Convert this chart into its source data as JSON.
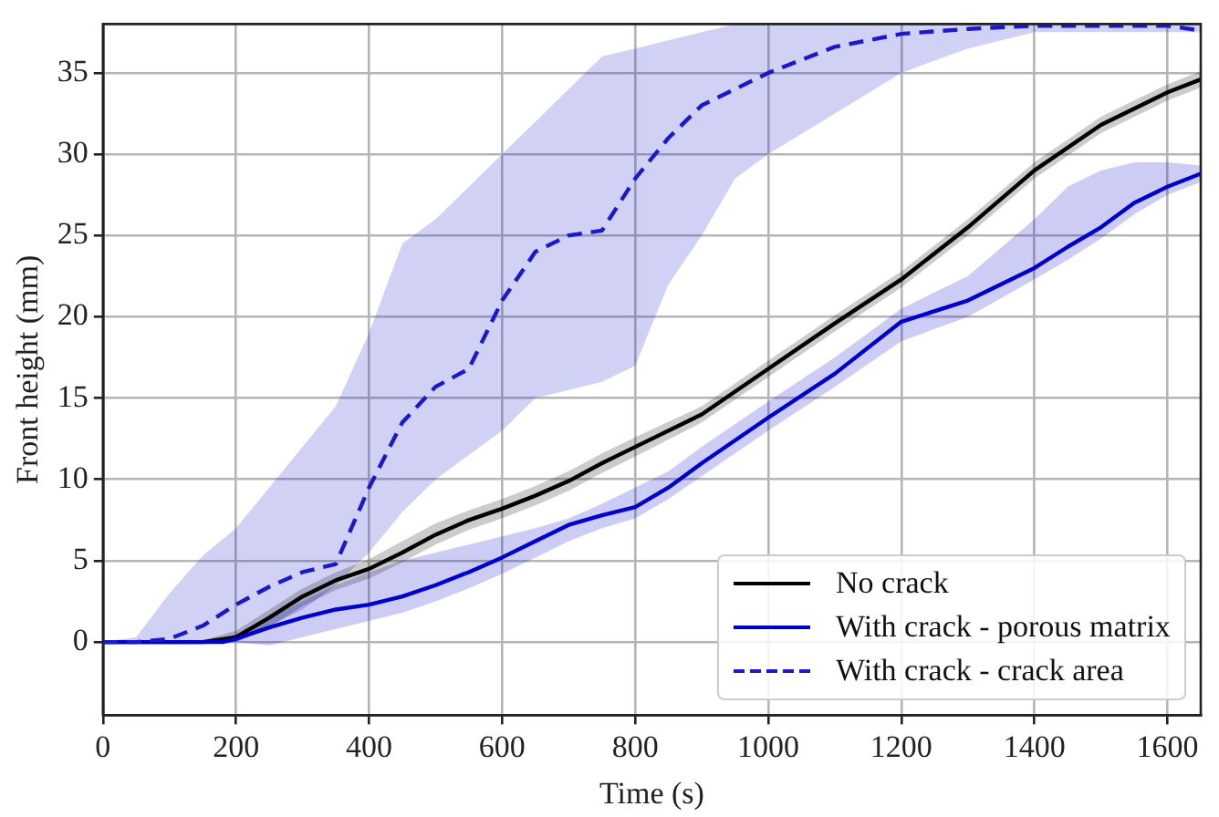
{
  "chart_data": {
    "type": "line",
    "xlabel": "Time (s)",
    "ylabel": "Front height (mm)",
    "xlim": [
      0,
      1650
    ],
    "ylim": [
      -4.5,
      38
    ],
    "xticks": [
      0,
      200,
      400,
      600,
      800,
      1000,
      1200,
      1400,
      1600
    ],
    "yticks": [
      0,
      5,
      10,
      15,
      20,
      25,
      30,
      35
    ],
    "grid": true,
    "legend": "bottom right",
    "marker": "none",
    "series": [
      {
        "name": "No crack",
        "color": "#000000",
        "line_style": "solid",
        "x": [
          0,
          100,
          150,
          200,
          250,
          300,
          350,
          400,
          450,
          500,
          550,
          600,
          650,
          700,
          750,
          800,
          900,
          1000,
          1100,
          1200,
          1300,
          1400,
          1500,
          1600,
          1650
        ],
        "values": [
          0,
          0,
          0,
          0.3,
          1.5,
          2.8,
          3.8,
          4.5,
          5.5,
          6.6,
          7.5,
          8.2,
          9,
          9.9,
          11,
          12,
          14,
          16.8,
          19.6,
          22.3,
          25.5,
          29,
          31.8,
          33.8,
          34.6
        ],
        "lower": [
          0,
          0,
          0,
          0,
          0.9,
          2.2,
          3.2,
          3.9,
          4.9,
          6,
          6.9,
          7.6,
          8.4,
          9.3,
          10.4,
          11.4,
          13.5,
          16.3,
          19.1,
          21.8,
          25,
          28.5,
          31.3,
          33.3,
          34.1
        ],
        "upper": [
          0,
          0,
          0.1,
          0.7,
          2,
          3.3,
          4.3,
          5.1,
          6.2,
          7.3,
          8.1,
          8.8,
          9.6,
          10.5,
          11.6,
          12.6,
          14.5,
          17.3,
          20.1,
          22.8,
          26,
          29.5,
          32.3,
          34.3,
          35.1
        ]
      },
      {
        "name": "With crack - porous matrix",
        "color": "#0000cc",
        "line_style": "solid",
        "x": [
          0,
          100,
          180,
          200,
          250,
          300,
          350,
          400,
          450,
          500,
          550,
          600,
          650,
          700,
          750,
          800,
          850,
          900,
          1000,
          1100,
          1200,
          1300,
          1400,
          1450,
          1500,
          1550,
          1600,
          1650
        ],
        "values": [
          0,
          0,
          0,
          0.2,
          0.9,
          1.5,
          2,
          2.3,
          2.8,
          3.5,
          4.3,
          5.2,
          6.2,
          7.2,
          7.8,
          8.3,
          9.5,
          11,
          13.8,
          16.5,
          19.7,
          21,
          23,
          24.3,
          25.5,
          27,
          28,
          28.8
        ],
        "lower": [
          0,
          0,
          0,
          0,
          -0.2,
          0.3,
          0.8,
          1.3,
          1.8,
          2.5,
          3.3,
          4.2,
          5.2,
          6.2,
          7,
          7.6,
          8.8,
          10.2,
          13,
          15.7,
          18.5,
          20,
          22.3,
          23.5,
          24.8,
          26.3,
          27.5,
          28.3
        ],
        "upper": [
          0,
          0,
          0.1,
          0.5,
          1.5,
          2.5,
          3.5,
          4.3,
          5,
          5.5,
          6,
          6.5,
          7,
          7.6,
          8.5,
          9.5,
          10.5,
          12,
          14.8,
          17.5,
          20.5,
          22.5,
          26,
          28,
          29,
          29.5,
          29.5,
          29.3
        ]
      },
      {
        "name": "With crack - crack area",
        "color": "#1a1acc",
        "line_style": "dashed",
        "x": [
          0,
          50,
          100,
          150,
          200,
          250,
          300,
          350,
          400,
          450,
          500,
          550,
          600,
          650,
          700,
          750,
          800,
          850,
          900,
          950,
          1000,
          1100,
          1200,
          1300,
          1400,
          1500,
          1600,
          1650
        ],
        "values": [
          0,
          0,
          0.2,
          1,
          2.3,
          3.4,
          4.3,
          4.8,
          9.5,
          13.5,
          15.7,
          16.8,
          21,
          24,
          25,
          25.3,
          28.5,
          31,
          33,
          34,
          35,
          36.6,
          37.4,
          37.7,
          37.9,
          37.9,
          37.9,
          37.6
        ],
        "lower": [
          0,
          0,
          0,
          0,
          0,
          1,
          2,
          3.5,
          5.5,
          8,
          10,
          11.5,
          13,
          15,
          15.5,
          16,
          17,
          22,
          25,
          28.5,
          30,
          32.5,
          35,
          36.5,
          37.5,
          37.5,
          37.5,
          37.5
        ],
        "upper": [
          0,
          0.3,
          3,
          5.3,
          7,
          9.5,
          12,
          14.5,
          19,
          24.5,
          26,
          28,
          30,
          32,
          34,
          36,
          36.5,
          37,
          37.5,
          38,
          38,
          38,
          38,
          38,
          38,
          38,
          38,
          38
        ]
      }
    ]
  }
}
